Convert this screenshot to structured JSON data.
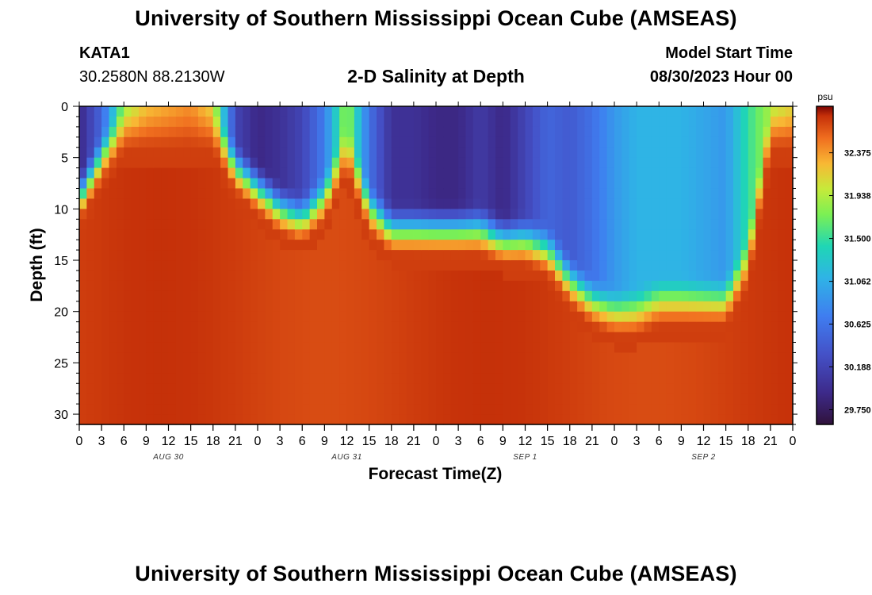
{
  "header": {
    "title": "University of Southern Mississippi Ocean Cube (AMSEAS)",
    "station_name": "KATA1",
    "station_coords": "30.2580N  88.2130W",
    "subtitle": "2-D Salinity at Depth",
    "model_start_label": "Model Start Time",
    "model_start_value": "08/30/2023 Hour 00"
  },
  "footer": {
    "title_repeat": "University of Southern Mississippi Ocean Cube (AMSEAS)"
  },
  "chart_data": {
    "type": "heatmap",
    "title": "2-D Salinity at Depth",
    "xlabel": "Forecast Time(Z)",
    "ylabel": "Depth (ft)",
    "x_range_hours": [
      0,
      96
    ],
    "x_step_hours": 3,
    "x_tick_labels": [
      "0",
      "3",
      "6",
      "9",
      "12",
      "15",
      "18",
      "21",
      "0",
      "3",
      "6",
      "9",
      "12",
      "15",
      "18",
      "21",
      "0",
      "3",
      "6",
      "9",
      "12",
      "15",
      "18",
      "21",
      "0",
      "3",
      "6",
      "9",
      "12",
      "15",
      "18",
      "21",
      "0"
    ],
    "date_labels": [
      {
        "text": "AUG 30",
        "hour": 12
      },
      {
        "text": "AUG 31",
        "hour": 36
      },
      {
        "text": "SEP 1",
        "hour": 60
      },
      {
        "text": "SEP 2",
        "hour": 84
      }
    ],
    "y_range_ft": [
      0,
      31
    ],
    "y_ticks": [
      0,
      5,
      10,
      15,
      20,
      25,
      30
    ],
    "colorbar": {
      "unit": "psu",
      "min": 29.6,
      "max": 32.85,
      "tick_values": [
        32.375,
        31.938,
        31.5,
        31.062,
        30.625,
        30.188,
        29.75
      ],
      "tick_labels": [
        "32.375",
        "31.938",
        "31.500",
        "31.062",
        "30.625",
        "30.188",
        "29.750"
      ]
    },
    "surface_salinity_psu": {
      "hours": [
        0,
        3,
        6,
        9,
        12,
        15,
        18,
        21,
        24,
        27,
        30,
        33,
        36,
        39,
        42,
        45,
        48,
        51,
        54,
        57,
        60,
        63,
        66,
        69,
        72,
        75,
        78,
        81,
        84,
        87,
        90,
        93,
        96
      ],
      "values": [
        29.9,
        30.5,
        31.8,
        32.2,
        32.3,
        32.4,
        32.1,
        30.2,
        29.9,
        30.0,
        30.2,
        30.7,
        31.9,
        30.6,
        30.0,
        30.0,
        29.9,
        29.9,
        30.1,
        29.9,
        30.2,
        30.5,
        30.4,
        30.6,
        30.9,
        31.1,
        31.1,
        31.1,
        31.0,
        30.9,
        31.5,
        31.9,
        32.1
      ]
    },
    "halocline_depth_ft": {
      "hours": [
        0,
        3,
        6,
        9,
        12,
        15,
        18,
        21,
        24,
        27,
        30,
        33,
        36,
        39,
        42,
        45,
        48,
        51,
        54,
        57,
        60,
        63,
        66,
        69,
        72,
        75,
        78,
        81,
        84,
        87,
        90,
        93,
        96
      ],
      "values": [
        7,
        3,
        0,
        0,
        0,
        0,
        0,
        4,
        6,
        8,
        9,
        7,
        2,
        8,
        10,
        10,
        10,
        10,
        10,
        11,
        11,
        12,
        15,
        17,
        18,
        18,
        17,
        17,
        17,
        17,
        13,
        0,
        0
      ]
    },
    "deep_salinity_psu": 32.7
  }
}
